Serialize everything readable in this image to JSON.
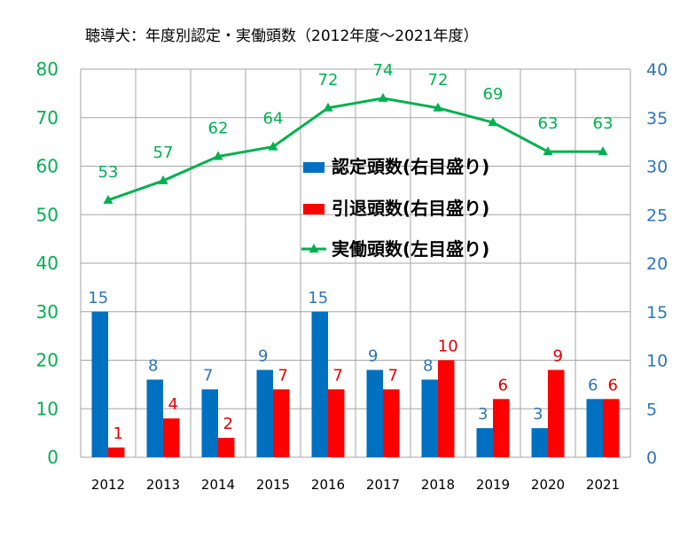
{
  "title": "聴導犬：年度別認定・実働頭数（2012年度～2021年度）",
  "colors": {
    "certified": "#0070c0",
    "retired": "#ff0000",
    "active": "#00b050",
    "left_axis": "#00b050",
    "right_axis": "#2e75b6"
  },
  "chart_data": {
    "type": "bar",
    "title": "聴導犬：年度別認定・実働頭数（2012年度～2021年度）",
    "categories": [
      "2012",
      "2013",
      "2014",
      "2015",
      "2016",
      "2017",
      "2018",
      "2019",
      "2020",
      "2021"
    ],
    "series": [
      {
        "name": "認定頭数(右目盛り)",
        "type": "bar",
        "axis": "right",
        "color": "#0070c0",
        "values": [
          15,
          8,
          7,
          9,
          15,
          9,
          8,
          3,
          3,
          6
        ]
      },
      {
        "name": "引退頭数(右目盛り)",
        "type": "bar",
        "axis": "right",
        "color": "#ff0000",
        "values": [
          1,
          4,
          2,
          7,
          7,
          7,
          10,
          6,
          9,
          6
        ]
      },
      {
        "name": "実働頭数(左目盛り)",
        "type": "line",
        "axis": "left",
        "color": "#00b050",
        "marker": "triangle",
        "values": [
          53,
          57,
          62,
          64,
          72,
          74,
          72,
          69,
          63,
          63
        ]
      }
    ],
    "left_axis": {
      "min": 0,
      "max": 80,
      "step": 10,
      "ticks": [
        "0",
        "10",
        "20",
        "30",
        "40",
        "50",
        "60",
        "70",
        "80"
      ]
    },
    "right_axis": {
      "min": 0,
      "max": 40,
      "step": 5,
      "ticks": [
        "0",
        "5",
        "10",
        "15",
        "20",
        "25",
        "30",
        "35",
        "40"
      ]
    },
    "grid": true,
    "legend_position": "center-right"
  }
}
